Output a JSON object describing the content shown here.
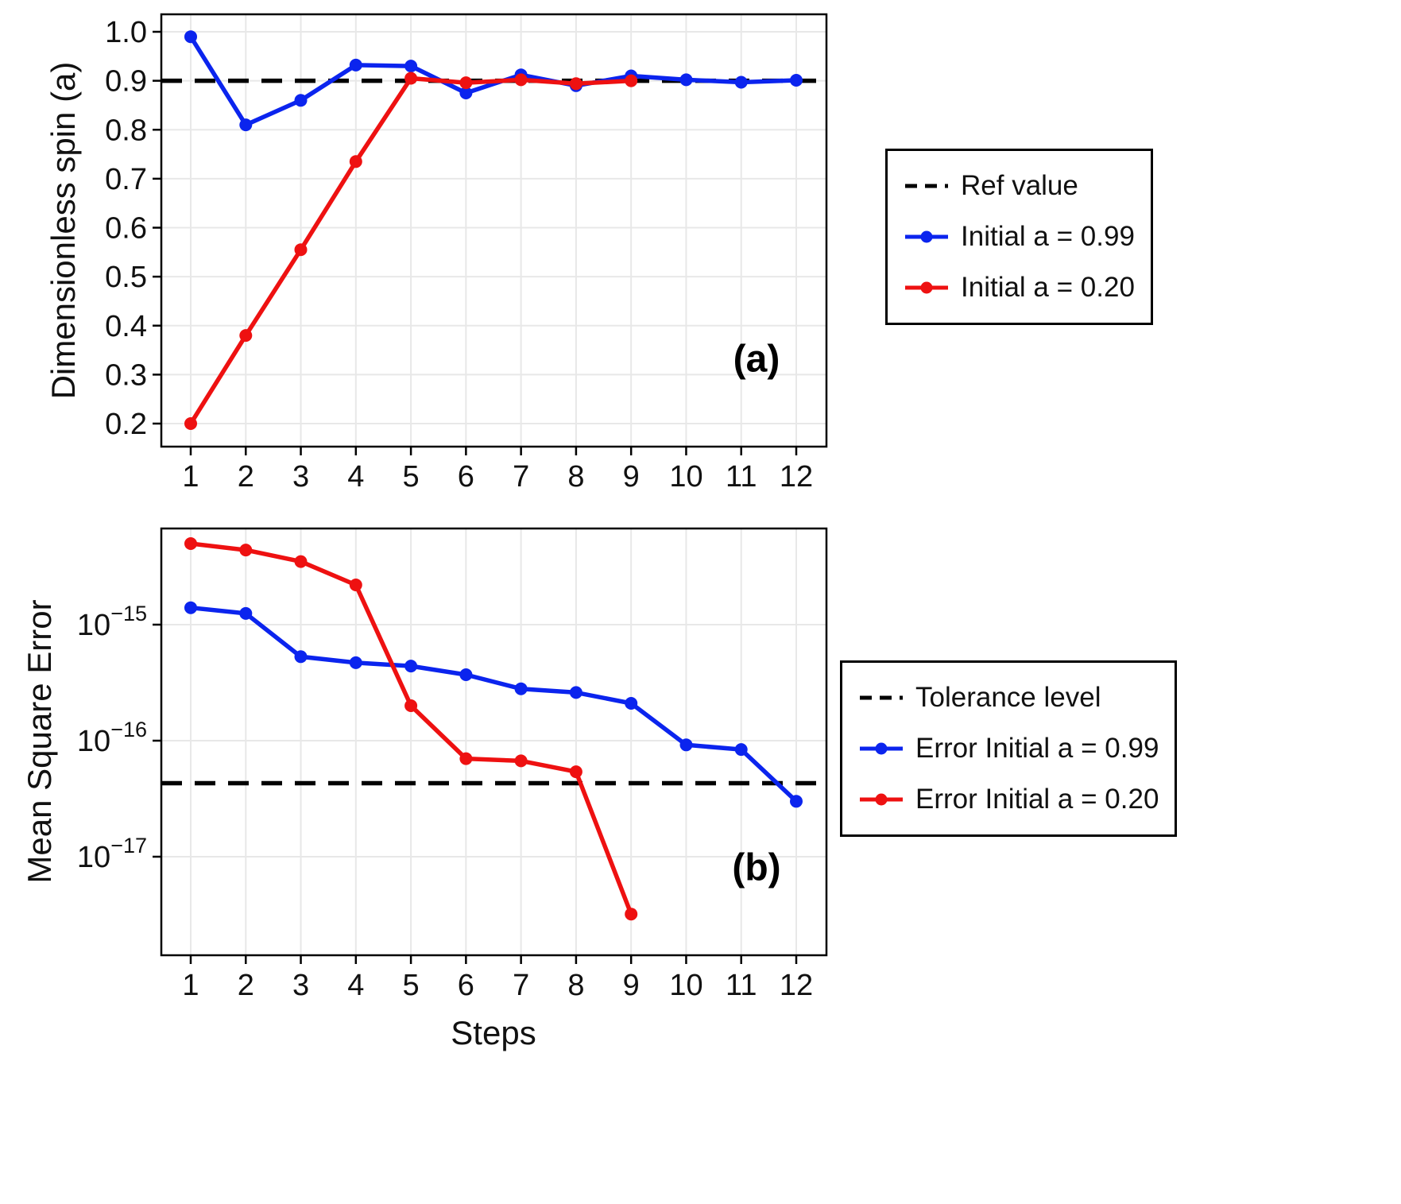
{
  "colors": {
    "blue": "#0b24ee",
    "red": "#ee1111",
    "ref": "#000000",
    "grid": "#e8e8e8",
    "frame": "#000000"
  },
  "chart_data": [
    {
      "id": "a",
      "type": "line",
      "panel_label": "(a)",
      "ylabel": "Dimensionless spin (a)",
      "xticks": [
        1,
        2,
        3,
        4,
        5,
        6,
        7,
        8,
        9,
        10,
        11,
        12
      ],
      "yticks": [
        0.2,
        0.3,
        0.4,
        0.5,
        0.6,
        0.7,
        0.8,
        0.9,
        1.0
      ],
      "ylim": [
        0.153,
        1.036
      ],
      "yscale": "linear",
      "grid": true,
      "ref_line": {
        "label": "Ref value",
        "value": 0.9
      },
      "series": [
        {
          "name": "Initial a = 0.99",
          "color_key": "blue",
          "x": [
            1,
            2,
            3,
            4,
            5,
            6,
            7,
            8,
            9,
            10,
            11,
            12
          ],
          "values": [
            0.99,
            0.81,
            0.86,
            0.932,
            0.93,
            0.875,
            0.912,
            0.89,
            0.91,
            0.902,
            0.897,
            0.901
          ]
        },
        {
          "name": "Initial a = 0.20",
          "color_key": "red",
          "x": [
            1,
            2,
            3,
            4,
            5,
            6,
            7,
            8,
            9
          ],
          "values": [
            0.2,
            0.38,
            0.555,
            0.735,
            0.905,
            0.896,
            0.902,
            0.894,
            0.9
          ]
        }
      ]
    },
    {
      "id": "b",
      "type": "line",
      "panel_label": "(b)",
      "ylabel": "Mean Square Error",
      "xlabel": "Steps",
      "xticks": [
        1,
        2,
        3,
        4,
        5,
        6,
        7,
        8,
        9,
        10,
        11,
        12
      ],
      "ytick_exponents": [
        -15,
        -16,
        -17
      ],
      "ylim": [
        1.4e-18,
        6.8e-15
      ],
      "yscale": "log",
      "grid": true,
      "ref_line": {
        "label": "Tolerance level",
        "value": 4.3e-17
      },
      "series": [
        {
          "name": "Error Initial a = 0.99",
          "color_key": "blue",
          "x": [
            1,
            2,
            3,
            4,
            5,
            6,
            7,
            8,
            9,
            10,
            11,
            12
          ],
          "values": [
            1.4e-15,
            1.25e-15,
            5.3e-16,
            4.7e-16,
            4.4e-16,
            3.7e-16,
            2.8e-16,
            2.6e-16,
            2.1e-16,
            9.2e-17,
            8.4e-17,
            3e-17
          ]
        },
        {
          "name": "Error Initial a = 0.20",
          "color_key": "red",
          "x": [
            1,
            2,
            3,
            4,
            5,
            6,
            7,
            8,
            9
          ],
          "values": [
            5e-15,
            4.4e-15,
            3.5e-15,
            2.2e-15,
            2e-16,
            7e-17,
            6.7e-17,
            5.4e-17,
            3.2e-18
          ]
        }
      ]
    }
  ],
  "legends": [
    {
      "items": [
        {
          "swatch": "dashed",
          "label": "Ref value"
        },
        {
          "swatch": "blue",
          "label": "Initial a = 0.99"
        },
        {
          "swatch": "red",
          "label": "Initial a = 0.20"
        }
      ]
    },
    {
      "items": [
        {
          "swatch": "dashed",
          "label": "Tolerance level"
        },
        {
          "swatch": "blue",
          "label": "Error Initial a = 0.99"
        },
        {
          "swatch": "red",
          "label": "Error Initial a = 0.20"
        }
      ]
    }
  ]
}
